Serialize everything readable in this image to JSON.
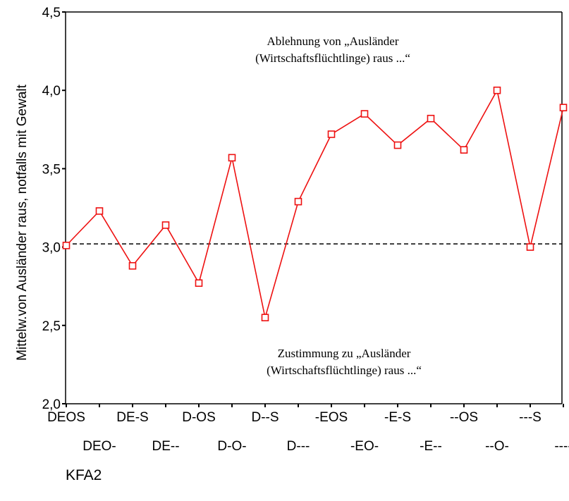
{
  "chart_data": {
    "type": "line",
    "xlabel": "KFA2",
    "ylabel": "Mittelw.von Ausländer raus, notfalls mit Gewalt",
    "ylim": [
      2.0,
      4.5
    ],
    "yticks": [
      "2,0",
      "2,5",
      "3,0",
      "3,5",
      "4,0",
      "4,5"
    ],
    "categories": [
      "DEOS",
      "DEO-",
      "DE-S",
      "DE--",
      "D-OS",
      "D-O-",
      "D--S",
      "D---",
      "-EOS",
      "-EO-",
      "-E-S",
      "-E--",
      "--OS",
      "--O-",
      "---S",
      "----"
    ],
    "series": [
      {
        "values": [
          3.01,
          3.23,
          2.88,
          3.14,
          2.77,
          3.57,
          2.55,
          3.29,
          3.72,
          3.85,
          3.65,
          3.82,
          3.62,
          4.0,
          3.0,
          3.89
        ]
      }
    ],
    "reference_line": 3.02,
    "annotations": {
      "top": [
        "Ablehnung von „Ausländer",
        "(Wirtschaftsflüchtlinge) raus ...“"
      ],
      "bottom": [
        "Zustimmung zu „Ausländer",
        "(Wirtschaftsflüchtlinge) raus ...“"
      ]
    },
    "colors": {
      "series": "#ee1111",
      "axis": "#000000"
    }
  }
}
